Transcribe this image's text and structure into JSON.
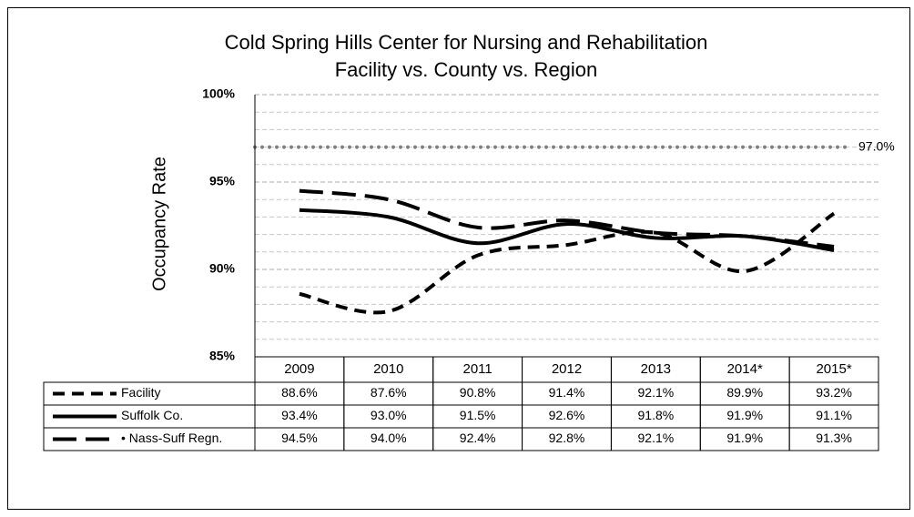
{
  "chart_data": {
    "type": "line",
    "title": "Cold Spring Hills Center for Nursing and Rehabilitation",
    "subtitle": "Facility vs. County vs. Region",
    "ylabel": "Occupancy Rate",
    "categories": [
      "2009",
      "2010",
      "2011",
      "2012",
      "2013",
      "2014*",
      "2015*"
    ],
    "series": [
      {
        "name": "Facility",
        "color": "#000000",
        "dash": "short",
        "values": [
          88.6,
          87.6,
          90.8,
          91.4,
          92.1,
          89.9,
          93.2
        ],
        "value_labels": [
          "88.6%",
          "87.6%",
          "90.8%",
          "91.4%",
          "92.1%",
          "89.9%",
          "93.2%"
        ]
      },
      {
        "name": "Suffolk Co.",
        "color": "#000000",
        "dash": "solid",
        "values": [
          93.4,
          93.0,
          91.5,
          92.6,
          91.8,
          91.9,
          91.1
        ],
        "value_labels": [
          "93.4%",
          "93.0%",
          "91.5%",
          "92.6%",
          "91.8%",
          "91.9%",
          "91.1%"
        ]
      },
      {
        "name": "• Nass-Suff Regn.",
        "color": "#000000",
        "dash": "long",
        "values": [
          94.5,
          94.0,
          92.4,
          92.8,
          92.1,
          91.9,
          91.3
        ],
        "value_labels": [
          "94.5%",
          "94.0%",
          "92.4%",
          "92.8%",
          "92.1%",
          "91.9%",
          "91.3%"
        ]
      }
    ],
    "target": {
      "value": 97,
      "label": "97.0%",
      "color": "#808080"
    },
    "ylim": [
      85,
      100
    ],
    "yticks": [
      {
        "value": 85,
        "label": "85%"
      },
      {
        "value": 90,
        "label": "90%"
      },
      {
        "value": 95,
        "label": "95%"
      },
      {
        "value": 100,
        "label": "100%"
      }
    ],
    "yminorticks": [
      86,
      87,
      88,
      89,
      91,
      92,
      93,
      94,
      96,
      97,
      98,
      99
    ],
    "grid": true
  }
}
